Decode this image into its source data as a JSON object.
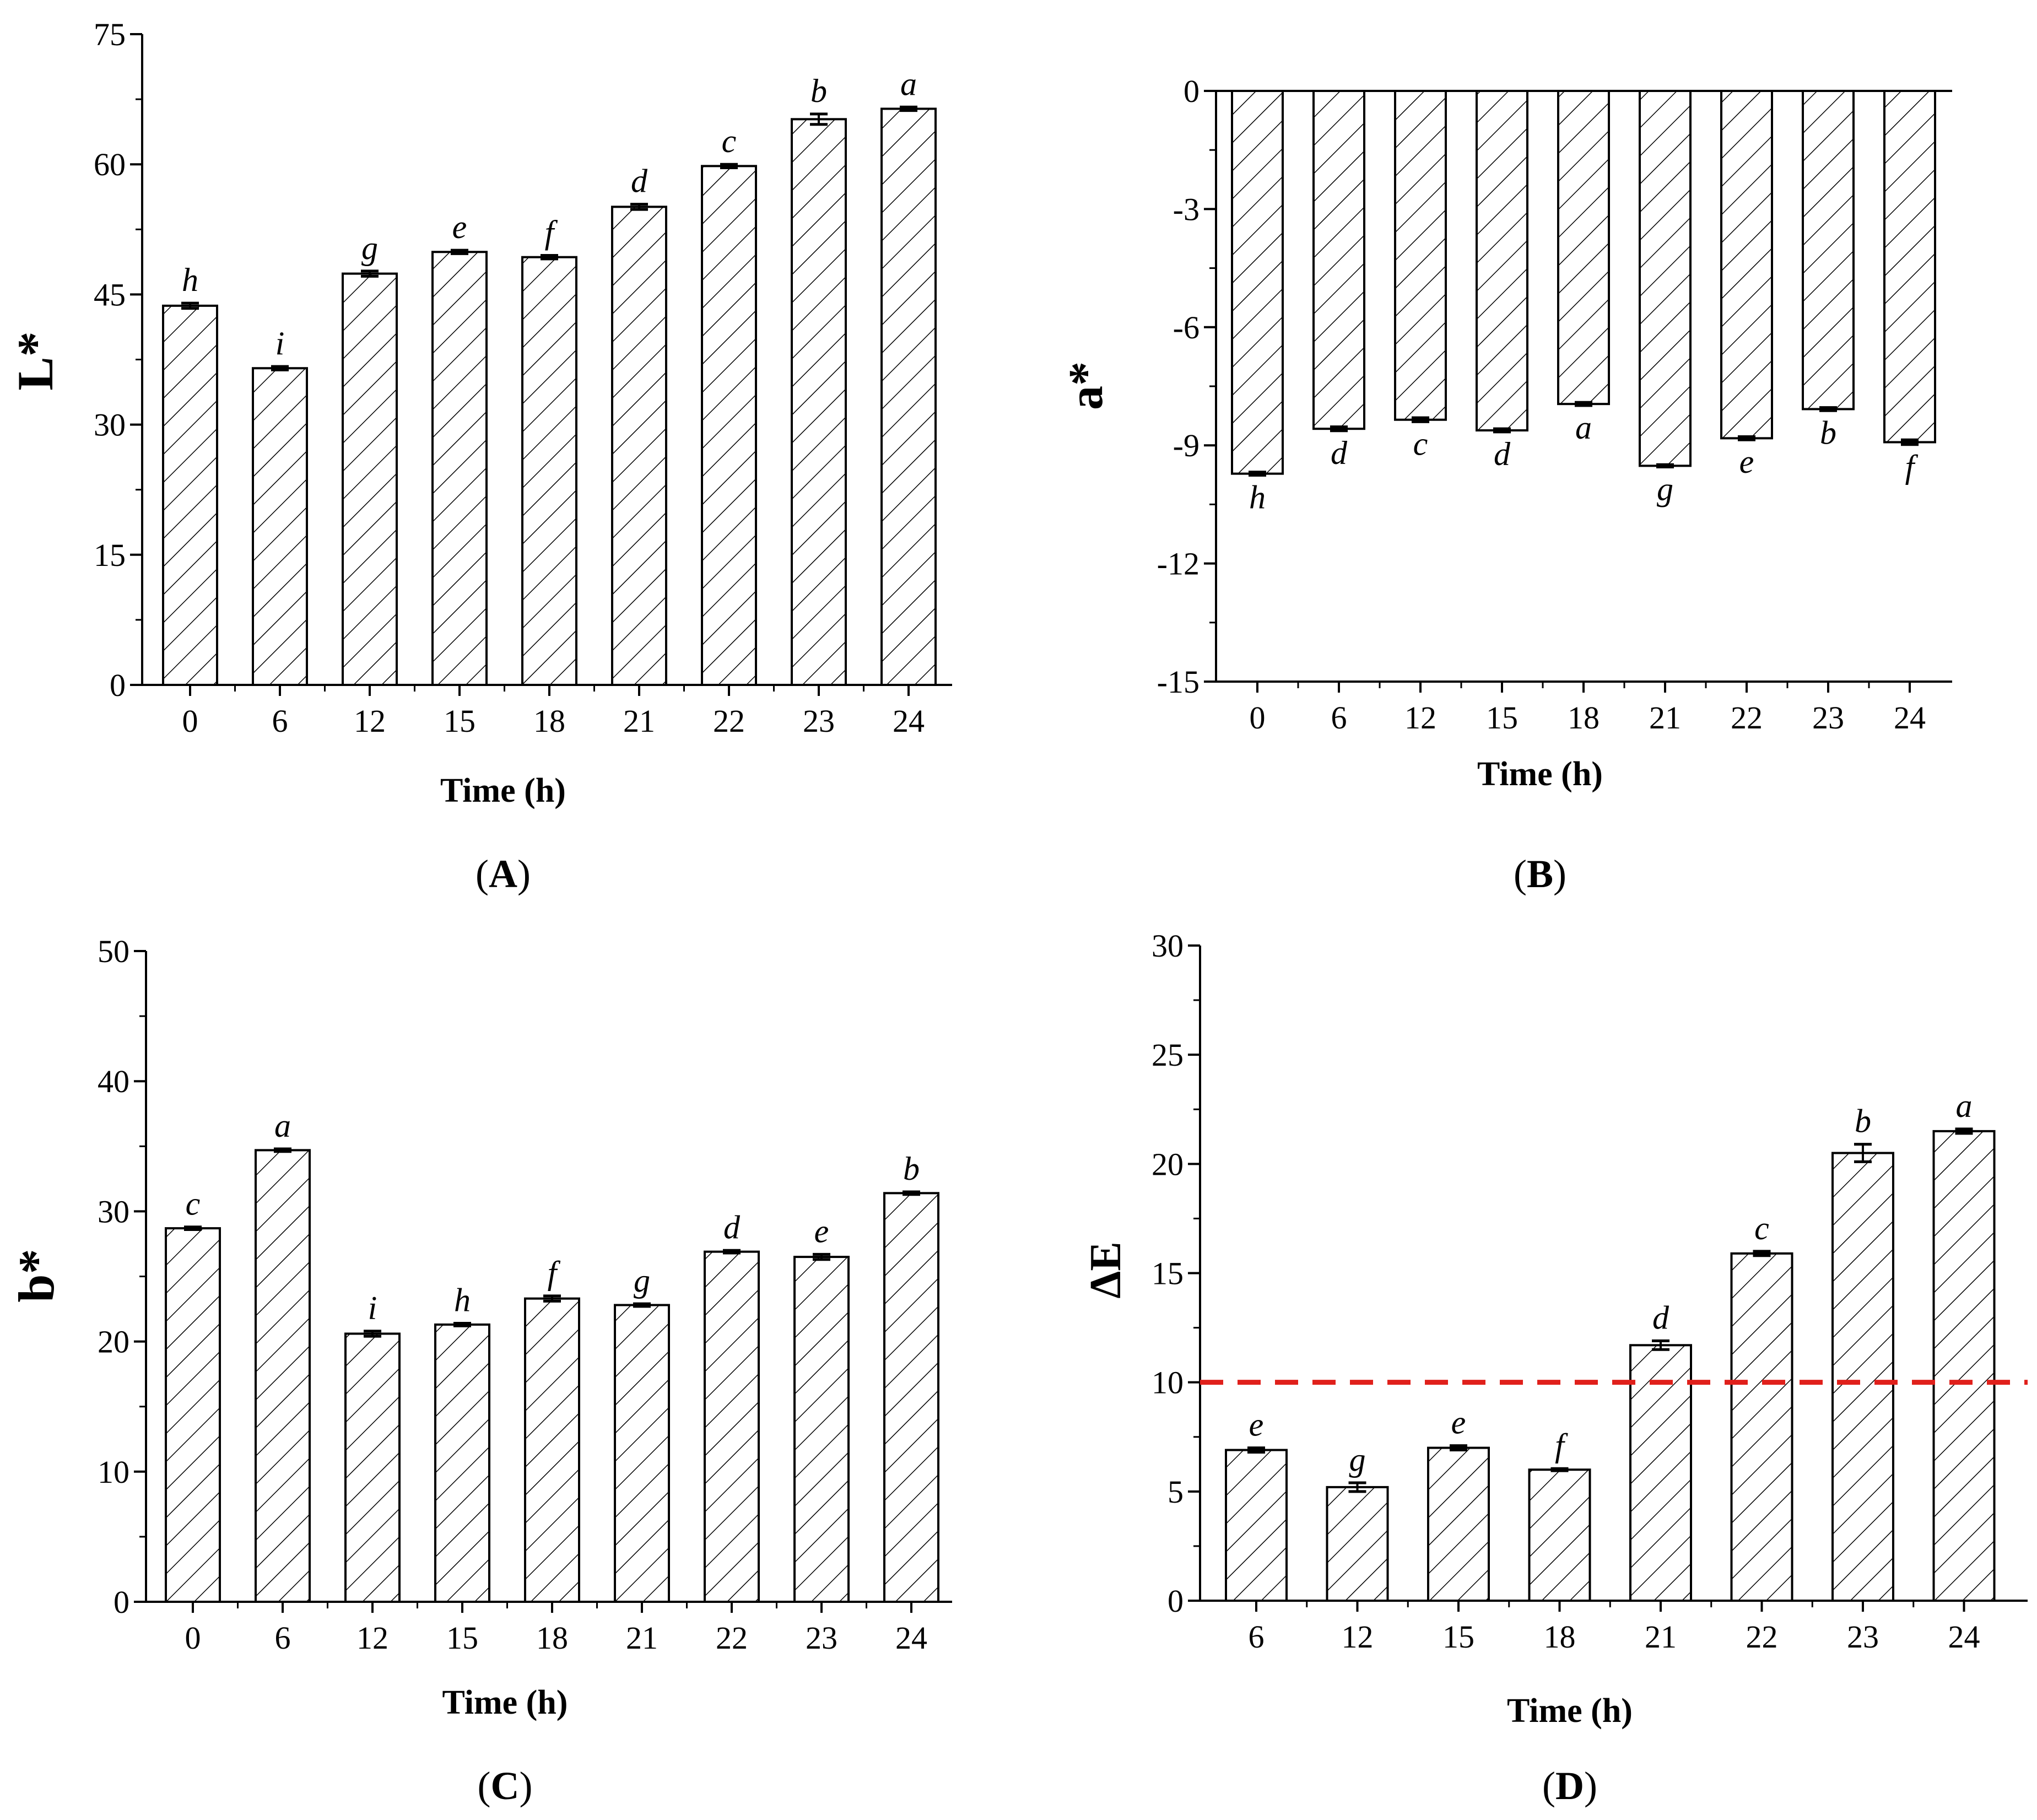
{
  "chart_data": [
    {
      "type": "bar",
      "panel": "A",
      "panel_label": "(A)",
      "panel_letter": "A",
      "ylabel": "L*",
      "xlabel": "Time (h)",
      "ylim": [
        0,
        75
      ],
      "yticks": [
        0,
        15,
        30,
        45,
        60,
        75
      ],
      "ytick_labels": [
        "0",
        "15",
        "30",
        "45",
        "60",
        "75"
      ],
      "categories": [
        "0",
        "6",
        "12",
        "15",
        "18",
        "21",
        "22",
        "23",
        "24"
      ],
      "values": [
        43.7,
        36.5,
        47.4,
        49.9,
        49.3,
        55.1,
        59.8,
        65.2,
        66.4
      ],
      "errors": [
        0.3,
        0.2,
        0.3,
        0.2,
        0.2,
        0.3,
        0.2,
        0.6,
        0.2
      ],
      "significance": [
        "h",
        "i",
        "g",
        "e",
        "f",
        "d",
        "c",
        "b",
        "a"
      ],
      "label_position": "above"
    },
    {
      "type": "bar",
      "panel": "B",
      "panel_label": "(B)",
      "panel_letter": "B",
      "ylabel": "a*",
      "xlabel": "Time (h)",
      "ylim": [
        -15,
        0
      ],
      "yticks": [
        -15,
        -12,
        -9,
        -6,
        -3,
        0
      ],
      "ytick_labels": [
        "-15",
        "-12",
        "-9",
        "-6",
        "-3",
        "0"
      ],
      "categories": [
        "0",
        "6",
        "12",
        "15",
        "18",
        "21",
        "22",
        "23",
        "24"
      ],
      "values": [
        -9.72,
        -8.58,
        -8.35,
        -8.62,
        -7.95,
        -9.52,
        -8.82,
        -8.08,
        -8.92
      ],
      "errors": [
        0.04,
        0.05,
        0.05,
        0.04,
        0.04,
        0.03,
        0.04,
        0.04,
        0.06
      ],
      "significance": [
        "h",
        "d",
        "c",
        "d",
        "a",
        "g",
        "e",
        "b",
        "f"
      ],
      "label_position": "below"
    },
    {
      "type": "bar",
      "panel": "C",
      "panel_label": "(C)",
      "panel_letter": "C",
      "ylabel": "b*",
      "xlabel": "Time (h)",
      "ylim": [
        0,
        50
      ],
      "yticks": [
        0,
        10,
        20,
        30,
        40,
        50
      ],
      "ytick_labels": [
        "0",
        "10",
        "20",
        "30",
        "40",
        "50"
      ],
      "categories": [
        "0",
        "6",
        "12",
        "15",
        "18",
        "21",
        "22",
        "23",
        "24"
      ],
      "values": [
        28.7,
        34.7,
        20.6,
        21.3,
        23.3,
        22.8,
        26.9,
        26.5,
        31.4
      ],
      "errors": [
        0.1,
        0.1,
        0.2,
        0.1,
        0.2,
        0.1,
        0.1,
        0.2,
        0.1
      ],
      "significance": [
        "c",
        "a",
        "i",
        "h",
        "f",
        "g",
        "d",
        "e",
        "b"
      ],
      "label_position": "above"
    },
    {
      "type": "bar",
      "panel": "D",
      "panel_label": "(D)",
      "panel_letter": "D",
      "ylabel": "ΔE",
      "xlabel": "Time (h)",
      "ylim": [
        0,
        30
      ],
      "yticks": [
        0,
        5,
        10,
        15,
        20,
        25,
        30
      ],
      "ytick_labels": [
        "0",
        "5",
        "10",
        "15",
        "20",
        "25",
        "30"
      ],
      "categories": [
        "6",
        "12",
        "15",
        "18",
        "21",
        "22",
        "23",
        "24"
      ],
      "values": [
        6.9,
        5.2,
        7.0,
        6.0,
        11.7,
        15.9,
        20.5,
        21.5
      ],
      "errors": [
        0.1,
        0.2,
        0.1,
        0.05,
        0.2,
        0.1,
        0.4,
        0.1
      ],
      "significance": [
        "e",
        "g",
        "e",
        "f",
        "d",
        "c",
        "b",
        "a"
      ],
      "label_position": "above",
      "reference_line": {
        "y": 10,
        "style": "dashed",
        "color": "#e0201b"
      }
    }
  ]
}
